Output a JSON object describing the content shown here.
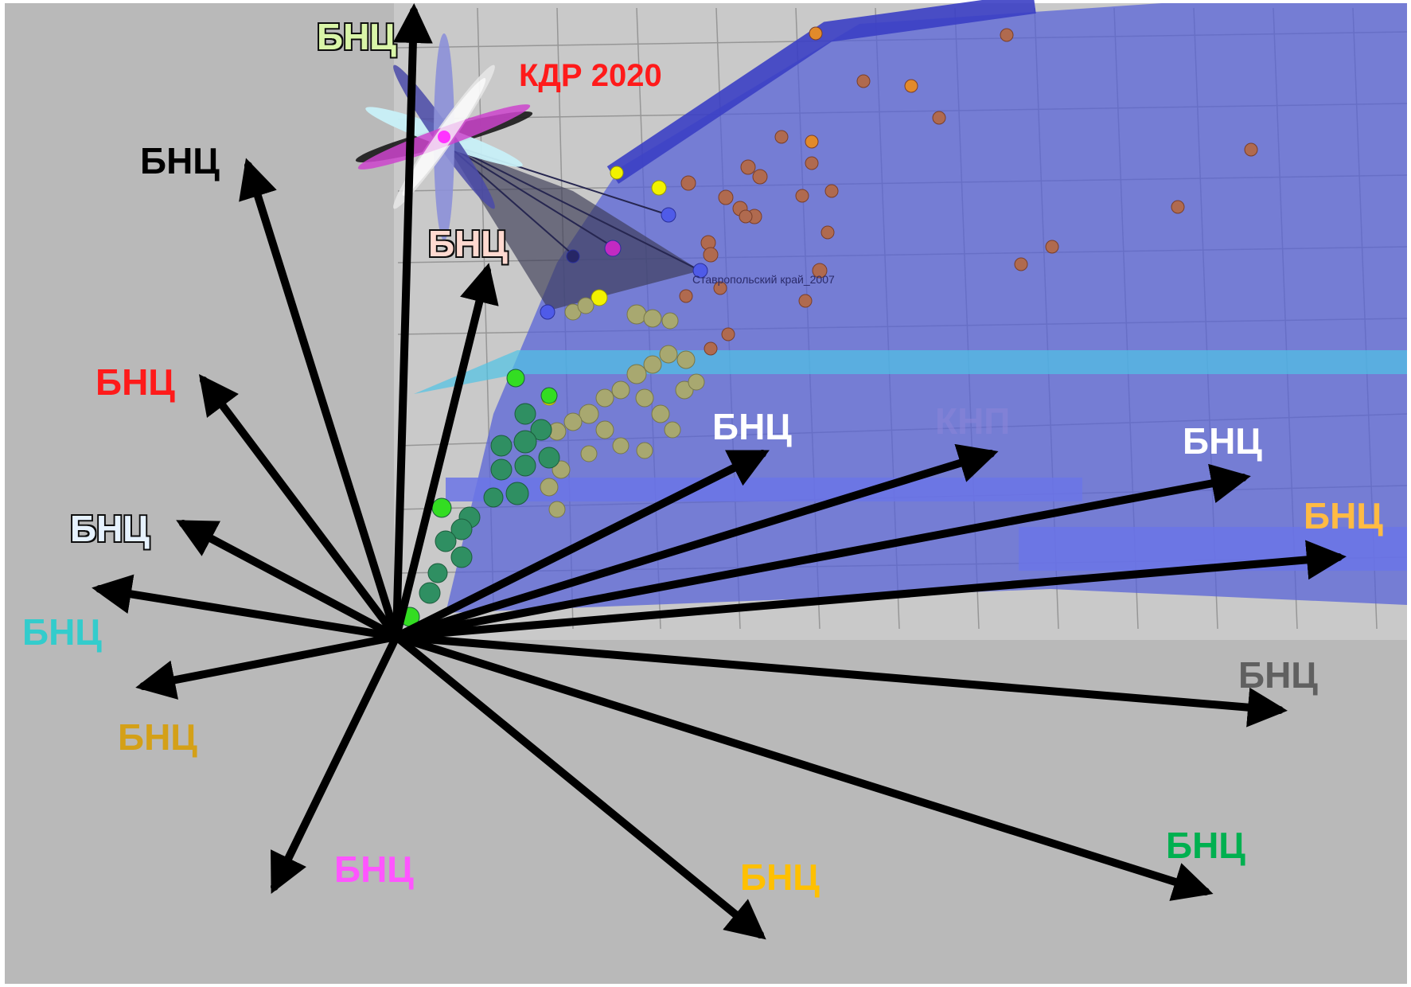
{
  "labels": {
    "kdr": "КДР 2020",
    "region": "Ставропольский край_2007",
    "faded": "КНП",
    "top_green": "БНЦ",
    "top_black": "БНЦ",
    "upper_pink": "БНЦ",
    "left_red": "БНЦ",
    "left_gray": "БНЦ",
    "left_cyan": "БНЦ",
    "left_gold": "БНЦ",
    "bottom_magenta": "БНЦ",
    "bottom_yellow": "БНЦ",
    "center_white": "БНЦ",
    "right_white": "БНЦ",
    "right_orange": "БНЦ",
    "right_gray": "БНЦ",
    "right_green": "БНЦ"
  },
  "colors": {
    "background": "#b9b9b9",
    "plane_blue": "#5560d8",
    "band_cyan": "#4fc3e6",
    "arrow": "#000000",
    "kdr": "#ff1a1a",
    "top_green": "#d9f5a8",
    "upper_pink": "#ffd9d0",
    "left_red": "#ff1a1a",
    "left_gray": "#e6f2ff",
    "left_cyan": "#33cccc",
    "left_gold": "#d4a017",
    "bottom_magenta": "#ff55ff",
    "bottom_yellow": "#ffc000",
    "center_white": "#ffffff",
    "right_orange": "#ffbb44",
    "right_gray": "#606060",
    "right_green": "#00b050",
    "faded": "#8a84d8"
  },
  "icons": [
    "flower-glyph",
    "arrow-fan"
  ]
}
